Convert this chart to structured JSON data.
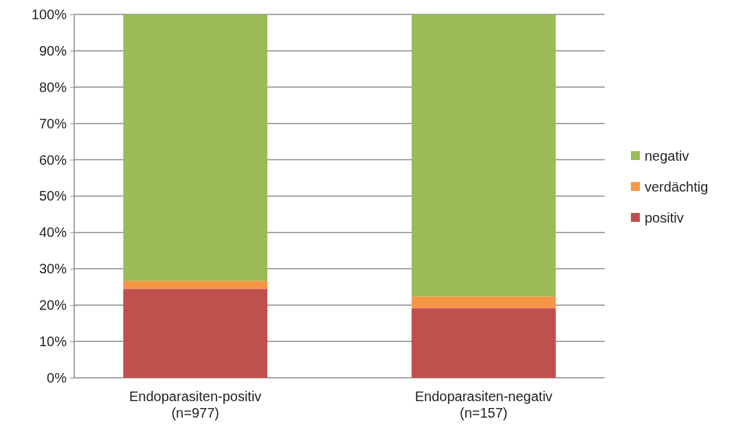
{
  "chart_data": {
    "type": "bar",
    "stacked": true,
    "categories": [
      "Endoparasiten-positiv\n(n=977)",
      "Endoparasiten-negativ\n(n=157)"
    ],
    "series": [
      {
        "name": "positiv",
        "color": "#c0504d",
        "values": [
          24.5,
          19.2
        ]
      },
      {
        "name": "verdächtig",
        "color": "#f79646",
        "values": [
          2.2,
          3.2
        ]
      },
      {
        "name": "negativ",
        "color": "#9bbb59",
        "values": [
          73.3,
          77.6
        ]
      }
    ],
    "ylim": [
      0,
      100
    ],
    "yticks": [
      {
        "value": 0,
        "label": "0%"
      },
      {
        "value": 10,
        "label": "10%"
      },
      {
        "value": 20,
        "label": "20%"
      },
      {
        "value": 30,
        "label": "30%"
      },
      {
        "value": 40,
        "label": "40%"
      },
      {
        "value": 50,
        "label": "50%"
      },
      {
        "value": 60,
        "label": "60%"
      },
      {
        "value": 70,
        "label": "70%"
      },
      {
        "value": 80,
        "label": "80%"
      },
      {
        "value": 90,
        "label": "90%"
      },
      {
        "value": 100,
        "label": "100%"
      }
    ],
    "grid": "y",
    "legend": "right"
  }
}
